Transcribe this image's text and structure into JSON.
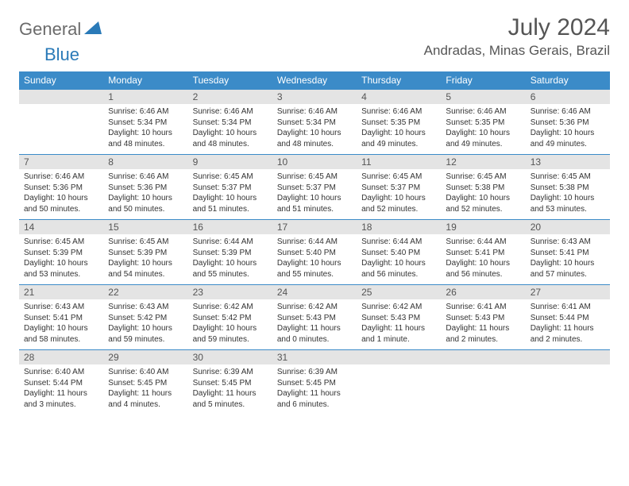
{
  "brand": {
    "general": "General",
    "blue": "Blue"
  },
  "title": "July 2024",
  "location": "Andradas, Minas Gerais, Brazil",
  "colors": {
    "header_bg": "#3b8bc8",
    "daynum_bg": "#e4e4e4",
    "text": "#333333",
    "title_text": "#555555"
  },
  "day_headers": [
    "Sunday",
    "Monday",
    "Tuesday",
    "Wednesday",
    "Thursday",
    "Friday",
    "Saturday"
  ],
  "weeks": [
    [
      null,
      {
        "n": "1",
        "sr": "6:46 AM",
        "ss": "5:34 PM",
        "dl": "10 hours and 48 minutes."
      },
      {
        "n": "2",
        "sr": "6:46 AM",
        "ss": "5:34 PM",
        "dl": "10 hours and 48 minutes."
      },
      {
        "n": "3",
        "sr": "6:46 AM",
        "ss": "5:34 PM",
        "dl": "10 hours and 48 minutes."
      },
      {
        "n": "4",
        "sr": "6:46 AM",
        "ss": "5:35 PM",
        "dl": "10 hours and 49 minutes."
      },
      {
        "n": "5",
        "sr": "6:46 AM",
        "ss": "5:35 PM",
        "dl": "10 hours and 49 minutes."
      },
      {
        "n": "6",
        "sr": "6:46 AM",
        "ss": "5:36 PM",
        "dl": "10 hours and 49 minutes."
      }
    ],
    [
      {
        "n": "7",
        "sr": "6:46 AM",
        "ss": "5:36 PM",
        "dl": "10 hours and 50 minutes."
      },
      {
        "n": "8",
        "sr": "6:46 AM",
        "ss": "5:36 PM",
        "dl": "10 hours and 50 minutes."
      },
      {
        "n": "9",
        "sr": "6:45 AM",
        "ss": "5:37 PM",
        "dl": "10 hours and 51 minutes."
      },
      {
        "n": "10",
        "sr": "6:45 AM",
        "ss": "5:37 PM",
        "dl": "10 hours and 51 minutes."
      },
      {
        "n": "11",
        "sr": "6:45 AM",
        "ss": "5:37 PM",
        "dl": "10 hours and 52 minutes."
      },
      {
        "n": "12",
        "sr": "6:45 AM",
        "ss": "5:38 PM",
        "dl": "10 hours and 52 minutes."
      },
      {
        "n": "13",
        "sr": "6:45 AM",
        "ss": "5:38 PM",
        "dl": "10 hours and 53 minutes."
      }
    ],
    [
      {
        "n": "14",
        "sr": "6:45 AM",
        "ss": "5:39 PM",
        "dl": "10 hours and 53 minutes."
      },
      {
        "n": "15",
        "sr": "6:45 AM",
        "ss": "5:39 PM",
        "dl": "10 hours and 54 minutes."
      },
      {
        "n": "16",
        "sr": "6:44 AM",
        "ss": "5:39 PM",
        "dl": "10 hours and 55 minutes."
      },
      {
        "n": "17",
        "sr": "6:44 AM",
        "ss": "5:40 PM",
        "dl": "10 hours and 55 minutes."
      },
      {
        "n": "18",
        "sr": "6:44 AM",
        "ss": "5:40 PM",
        "dl": "10 hours and 56 minutes."
      },
      {
        "n": "19",
        "sr": "6:44 AM",
        "ss": "5:41 PM",
        "dl": "10 hours and 56 minutes."
      },
      {
        "n": "20",
        "sr": "6:43 AM",
        "ss": "5:41 PM",
        "dl": "10 hours and 57 minutes."
      }
    ],
    [
      {
        "n": "21",
        "sr": "6:43 AM",
        "ss": "5:41 PM",
        "dl": "10 hours and 58 minutes."
      },
      {
        "n": "22",
        "sr": "6:43 AM",
        "ss": "5:42 PM",
        "dl": "10 hours and 59 minutes."
      },
      {
        "n": "23",
        "sr": "6:42 AM",
        "ss": "5:42 PM",
        "dl": "10 hours and 59 minutes."
      },
      {
        "n": "24",
        "sr": "6:42 AM",
        "ss": "5:43 PM",
        "dl": "11 hours and 0 minutes."
      },
      {
        "n": "25",
        "sr": "6:42 AM",
        "ss": "5:43 PM",
        "dl": "11 hours and 1 minute."
      },
      {
        "n": "26",
        "sr": "6:41 AM",
        "ss": "5:43 PM",
        "dl": "11 hours and 2 minutes."
      },
      {
        "n": "27",
        "sr": "6:41 AM",
        "ss": "5:44 PM",
        "dl": "11 hours and 2 minutes."
      }
    ],
    [
      {
        "n": "28",
        "sr": "6:40 AM",
        "ss": "5:44 PM",
        "dl": "11 hours and 3 minutes."
      },
      {
        "n": "29",
        "sr": "6:40 AM",
        "ss": "5:45 PM",
        "dl": "11 hours and 4 minutes."
      },
      {
        "n": "30",
        "sr": "6:39 AM",
        "ss": "5:45 PM",
        "dl": "11 hours and 5 minutes."
      },
      {
        "n": "31",
        "sr": "6:39 AM",
        "ss": "5:45 PM",
        "dl": "11 hours and 6 minutes."
      },
      null,
      null,
      null
    ]
  ],
  "labels": {
    "sunrise": "Sunrise:",
    "sunset": "Sunset:",
    "daylight": "Daylight:"
  }
}
